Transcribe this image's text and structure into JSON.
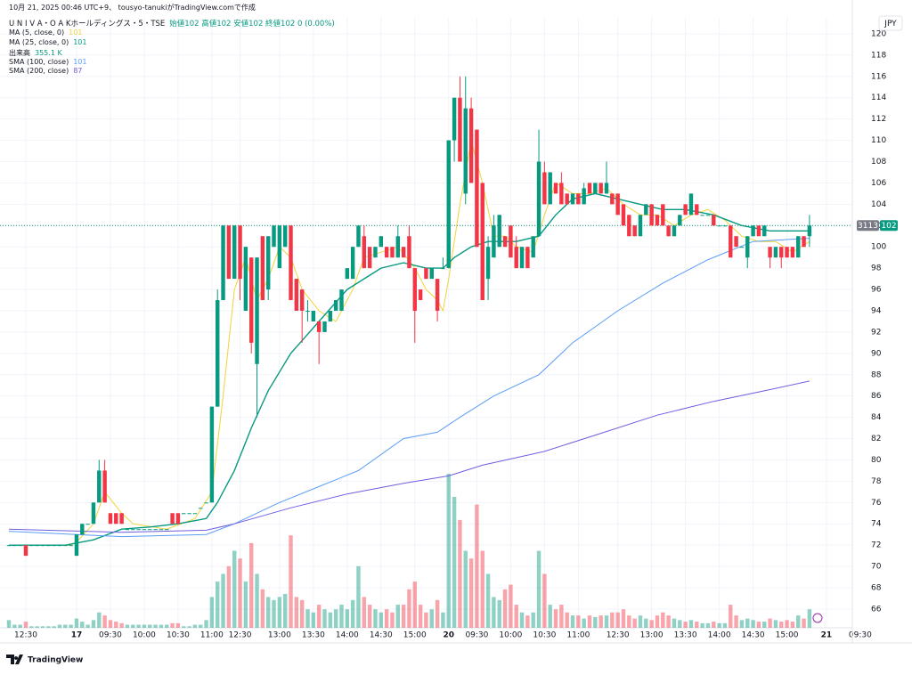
{
  "header": {
    "credit": "10月 21, 2025 00:46 UTC+9、 tousyo-tanukiがTradingView.comで作成",
    "symbol": "U N I V A・O A Kホールディングス・5・TSE",
    "ohlc_text": "始値102 高値102 安値102 終値102 0 (0.00%)",
    "currency": "JPY",
    "brand": "TradingView"
  },
  "chart_data": {
    "type": "candlestick",
    "up_color": "#089981",
    "down_color": "#f23645",
    "symbol_code": "3113",
    "last_price": 102,
    "last_price_label": "102",
    "volume_name": "出来高",
    "volume_legend": "355.1 K",
    "ylim": [
      64.24,
      121.5
    ],
    "xlim": [
      -1.58,
      149.6
    ],
    "grid": true,
    "yticks": [
      66,
      68,
      70,
      72,
      74,
      76,
      78,
      80,
      82,
      84,
      86,
      88,
      90,
      92,
      94,
      96,
      98,
      100,
      102,
      104,
      106,
      108,
      110,
      112,
      114,
      116,
      118,
      120
    ],
    "xticks": [
      {
        "value": 3,
        "label": "12:30"
      },
      {
        "value": 12,
        "label": "17"
      },
      {
        "value": 18,
        "label": "09:30"
      },
      {
        "value": 24,
        "label": "10:00"
      },
      {
        "value": 30,
        "label": "10:30"
      },
      {
        "value": 36,
        "label": "11:00"
      },
      {
        "value": 41,
        "label": "12:30"
      },
      {
        "value": 48,
        "label": "13:00"
      },
      {
        "value": 54,
        "label": "13:30"
      },
      {
        "value": 60,
        "label": "14:00"
      },
      {
        "value": 66,
        "label": "14:30"
      },
      {
        "value": 72,
        "label": "15:00"
      },
      {
        "value": 78,
        "label": "20"
      },
      {
        "value": 83,
        "label": "09:30"
      },
      {
        "value": 89,
        "label": "10:00"
      },
      {
        "value": 95,
        "label": "10:30"
      },
      {
        "value": 101,
        "label": "11:00"
      },
      {
        "value": 108,
        "label": "12:30"
      },
      {
        "value": 114,
        "label": "13:00"
      },
      {
        "value": 120,
        "label": "13:30"
      },
      {
        "value": 126,
        "label": "14:00"
      },
      {
        "value": 132,
        "label": "14:30"
      },
      {
        "value": 138,
        "label": "15:00"
      },
      {
        "value": 145,
        "label": "21"
      },
      {
        "value": 151,
        "label": "09:30"
      }
    ],
    "ohlc": [
      [
        72,
        72,
        72,
        72
      ],
      [
        72,
        72,
        72,
        72
      ],
      [
        72,
        72,
        72,
        72
      ],
      [
        72,
        72,
        71,
        71
      ],
      [
        72,
        72,
        72,
        72
      ],
      [
        72,
        72,
        72,
        72
      ],
      [
        72,
        72,
        72,
        72
      ],
      [
        72,
        72,
        72,
        72
      ],
      [
        72,
        72,
        72,
        72
      ],
      [
        72,
        72,
        72,
        72
      ],
      [
        72,
        72,
        72,
        72
      ],
      [
        72,
        72,
        72,
        72
      ],
      [
        71,
        73,
        71,
        73
      ],
      [
        73,
        74,
        73,
        74
      ],
      [
        74,
        74,
        74,
        74
      ],
      [
        74,
        76,
        74,
        76
      ],
      [
        76,
        80,
        76,
        79
      ],
      [
        79,
        80,
        76,
        76
      ],
      [
        75,
        75,
        74,
        74
      ],
      [
        75,
        75,
        74,
        74
      ],
      [
        75,
        75,
        74,
        74
      ],
      [
        73.5,
        73.5,
        73.5,
        73.5
      ],
      [
        73.5,
        73.5,
        73.5,
        73.5
      ],
      [
        73.5,
        73.5,
        73.5,
        73.5
      ],
      [
        73.5,
        73.5,
        73.5,
        73.5
      ],
      [
        73.5,
        73.5,
        73.5,
        73.5
      ],
      [
        73.5,
        73.5,
        73.5,
        73.5
      ],
      [
        73.5,
        73.5,
        73.5,
        73.5
      ],
      [
        73.5,
        73.5,
        73.5,
        73.5
      ],
      [
        75,
        75,
        74,
        74
      ],
      [
        75,
        75,
        74,
        74
      ],
      [
        75,
        75,
        75,
        75
      ],
      [
        75,
        75,
        75,
        75
      ],
      [
        75,
        75,
        75,
        75
      ],
      [
        75.5,
        75.5,
        75.5,
        75.5
      ],
      [
        76,
        76,
        76,
        76
      ],
      [
        76,
        85,
        76,
        85
      ],
      [
        85,
        96,
        85,
        95
      ],
      [
        95,
        102,
        95,
        102
      ],
      [
        102,
        102,
        97,
        97
      ],
      [
        97,
        102,
        97,
        102
      ],
      [
        102,
        102,
        95,
        97
      ],
      [
        94,
        100,
        94,
        100
      ],
      [
        99,
        99,
        90,
        91
      ],
      [
        89,
        99,
        84,
        99
      ],
      [
        101,
        101,
        95,
        95
      ],
      [
        96,
        101,
        95,
        101
      ],
      [
        100,
        102,
        100,
        102
      ],
      [
        98,
        102,
        98,
        102
      ],
      [
        100,
        102,
        100,
        102
      ],
      [
        102,
        102,
        95,
        95
      ],
      [
        97,
        97,
        94,
        94
      ],
      [
        96,
        96,
        91,
        94
      ],
      [
        94,
        95,
        93,
        94
      ],
      [
        93,
        94,
        93,
        94
      ],
      [
        93,
        93,
        89,
        92
      ],
      [
        92,
        93,
        92,
        93
      ],
      [
        93,
        94,
        93,
        94
      ],
      [
        94,
        95,
        94,
        95
      ],
      [
        94,
        96,
        94,
        96
      ],
      [
        97,
        98,
        97,
        98
      ],
      [
        97,
        100,
        97,
        100
      ],
      [
        100,
        102,
        100,
        102
      ],
      [
        101,
        102,
        98,
        98
      ],
      [
        100,
        100,
        98,
        98
      ],
      [
        99,
        100,
        99,
        100
      ],
      [
        100,
        101,
        100,
        101
      ],
      [
        100,
        100,
        99,
        99
      ],
      [
        100,
        100,
        99,
        99
      ],
      [
        99,
        102,
        99,
        101
      ],
      [
        100,
        100,
        99,
        99
      ],
      [
        101,
        102,
        98,
        98
      ],
      [
        98,
        98,
        91,
        94
      ],
      [
        96,
        96,
        95,
        95
      ],
      [
        98,
        98,
        97,
        97
      ],
      [
        97,
        98,
        97,
        98
      ],
      [
        97,
        97,
        93,
        94
      ],
      [
        98,
        99,
        98,
        98
      ],
      [
        98,
        110,
        98,
        110
      ],
      [
        110,
        114,
        108,
        114
      ],
      [
        114,
        116,
        108,
        108
      ],
      [
        105,
        116,
        104,
        113
      ],
      [
        113,
        114,
        106,
        106
      ],
      [
        111,
        111,
        100,
        100
      ],
      [
        106,
        106,
        95,
        95
      ],
      [
        97,
        101,
        95,
        100
      ],
      [
        99,
        103,
        99,
        102
      ],
      [
        100,
        103,
        100,
        103
      ],
      [
        101,
        101,
        100,
        100
      ],
      [
        102,
        102,
        99,
        99
      ],
      [
        100,
        101,
        98,
        98
      ],
      [
        98,
        100,
        98,
        100
      ],
      [
        100,
        100,
        98,
        98
      ],
      [
        99,
        101,
        99,
        101
      ],
      [
        101,
        111,
        101,
        108
      ],
      [
        107,
        108,
        104,
        104
      ],
      [
        104,
        107,
        104,
        107
      ],
      [
        106,
        106,
        105,
        105
      ],
      [
        106,
        107,
        104,
        104
      ],
      [
        105,
        105,
        104,
        104
      ],
      [
        104,
        105,
        104,
        105
      ],
      [
        105,
        105,
        104,
        104
      ],
      [
        104,
        106,
        104,
        105.5
      ],
      [
        106,
        106,
        105,
        105
      ],
      [
        105,
        106,
        105,
        106
      ],
      [
        106,
        106,
        105,
        105
      ],
      [
        105,
        108,
        105,
        106
      ],
      [
        105,
        105,
        104,
        104
      ],
      [
        105,
        105,
        103,
        103
      ],
      [
        104,
        104,
        102,
        102
      ],
      [
        103,
        103,
        101,
        101
      ],
      [
        102,
        102,
        101,
        101
      ],
      [
        101,
        103,
        101,
        103
      ],
      [
        103,
        104,
        103,
        104
      ],
      [
        104,
        104,
        102,
        102
      ],
      [
        103,
        103,
        102,
        102
      ],
      [
        104,
        104,
        102,
        102
      ],
      [
        102,
        102,
        101,
        101
      ],
      [
        101,
        102,
        101,
        102
      ],
      [
        102,
        103,
        102,
        103
      ],
      [
        104,
        104,
        103,
        103
      ],
      [
        103,
        105,
        103,
        105
      ],
      [
        104,
        104,
        103,
        103
      ],
      [
        103,
        103,
        103,
        103
      ],
      [
        103,
        103,
        103,
        103
      ],
      [
        103,
        103,
        102,
        102
      ],
      [
        102,
        102,
        102,
        102
      ],
      [
        102,
        102,
        102,
        102
      ],
      [
        102,
        102,
        99,
        99
      ],
      [
        101,
        101,
        100,
        100
      ],
      [
        100,
        100,
        100,
        100
      ],
      [
        99,
        101,
        98,
        101
      ],
      [
        101,
        102,
        101,
        102
      ],
      [
        102,
        102,
        101,
        101
      ],
      [
        101,
        102,
        101,
        102
      ],
      [
        100,
        100,
        98,
        99
      ],
      [
        99,
        100,
        99,
        100
      ],
      [
        100,
        100,
        98,
        99
      ],
      [
        100,
        100,
        99,
        99
      ],
      [
        100,
        100,
        99,
        99
      ],
      [
        99,
        101,
        99,
        101
      ],
      [
        101,
        101,
        100,
        100
      ],
      [
        101,
        103,
        100,
        102
      ]
    ],
    "volume": [
      5,
      2,
      2,
      4,
      1,
      1,
      1,
      1,
      1,
      2,
      2,
      2,
      6,
      4,
      2,
      5,
      10,
      8,
      5,
      4,
      3,
      2,
      2,
      2,
      2,
      2,
      2,
      2,
      2,
      3,
      3,
      1,
      1,
      2,
      2,
      5,
      20,
      30,
      35,
      40,
      50,
      45,
      30,
      55,
      35,
      25,
      20,
      18,
      20,
      22,
      60,
      20,
      18,
      12,
      10,
      15,
      12,
      10,
      12,
      15,
      12,
      18,
      40,
      20,
      15,
      12,
      10,
      12,
      10,
      15,
      15,
      25,
      30,
      15,
      10,
      12,
      18,
      10,
      100,
      85,
      70,
      50,
      45,
      80,
      50,
      35,
      20,
      18,
      25,
      28,
      15,
      10,
      8,
      10,
      50,
      35,
      15,
      12,
      15,
      10,
      8,
      8,
      6,
      8,
      7,
      8,
      8,
      10,
      10,
      12,
      8,
      6,
      8,
      6,
      5,
      8,
      10,
      8,
      6,
      5,
      4,
      5,
      4,
      3,
      3,
      4,
      3,
      3,
      15,
      8,
      5,
      6,
      5,
      4,
      4,
      6,
      5,
      4,
      5,
      4,
      8,
      6,
      12
    ],
    "series": [
      {
        "name": "MA (5, close, 0)",
        "legend_value": "101",
        "color": "#f2d338",
        "x": [
          0,
          11,
          12,
          15,
          17,
          20,
          22,
          28,
          33,
          36,
          38,
          40,
          42,
          44,
          46,
          48,
          50,
          52,
          55,
          58,
          61,
          63,
          66,
          69,
          72,
          74,
          76,
          77,
          78,
          80,
          82,
          84,
          86,
          88,
          90,
          93,
          95,
          97,
          100,
          103,
          106,
          109,
          112,
          115,
          118,
          121,
          124,
          127,
          130,
          133,
          136,
          139,
          142
        ],
        "values": [
          72,
          72,
          72.3,
          74,
          77,
          75,
          74,
          73.5,
          74.5,
          77,
          86,
          96,
          99,
          95,
          97,
          100,
          99,
          96,
          94,
          93,
          96,
          99,
          99.5,
          100,
          98,
          96,
          95,
          94,
          97,
          104,
          110,
          106,
          101,
          101,
          100,
          99.5,
          103,
          106,
          105,
          105,
          105.5,
          104,
          103,
          103,
          102,
          103,
          103.5,
          102.5,
          101,
          100.5,
          100.5,
          99.5,
          100.5
        ]
      },
      {
        "name": "MA (25, close, 0)",
        "legend_value": "101",
        "color": "#089981",
        "x": [
          0,
          10,
          15,
          20,
          25,
          30,
          35,
          37,
          40,
          43,
          46,
          50,
          55,
          60,
          63,
          66,
          70,
          74,
          77,
          79,
          82,
          85,
          90,
          94,
          97,
          100,
          104,
          108,
          112,
          116,
          120,
          125,
          130,
          135,
          140,
          142
        ],
        "values": [
          72,
          72,
          72.5,
          73.5,
          73.7,
          74,
          74.5,
          76,
          79,
          83,
          86.5,
          90,
          93,
          96,
          97,
          98,
          98.5,
          98,
          98,
          99,
          100,
          100.5,
          100.5,
          101,
          103,
          104.5,
          105,
          104.5,
          104,
          103.5,
          103.5,
          103,
          102,
          101.5,
          101.5,
          101.5
        ]
      },
      {
        "name": "SMA (100, close)",
        "legend_value": "101",
        "color": "#5b9cf6",
        "x": [
          0,
          20,
          35,
          40,
          48,
          55,
          62,
          70,
          76,
          80,
          86,
          94,
          100,
          108,
          116,
          124,
          132,
          142
        ],
        "values": [
          73.3,
          72.8,
          73,
          74,
          76,
          77.5,
          79,
          82,
          82.6,
          84,
          86,
          88,
          91,
          94,
          96.6,
          98.8,
          100.5,
          100.8
        ]
      },
      {
        "name": "SMA (200, close)",
        "legend_value": "87",
        "color": "#6f5ee0",
        "x": [
          0,
          20,
          35,
          40,
          50,
          60,
          70,
          78,
          84,
          95,
          105,
          115,
          125,
          135,
          142
        ],
        "values": [
          73.5,
          73.2,
          73.4,
          74,
          75.5,
          76.8,
          77.8,
          78.5,
          79.5,
          80.8,
          82.5,
          84.2,
          85.5,
          86.6,
          87.4
        ]
      }
    ]
  }
}
